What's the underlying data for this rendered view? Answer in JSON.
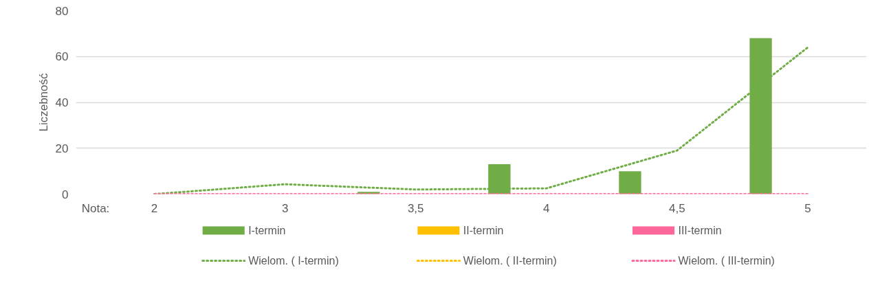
{
  "chart_data": {
    "type": "bar",
    "xlabel": "Nota:",
    "ylabel": "Liczebność",
    "categories": [
      "2",
      "3",
      "3,5",
      "4",
      "4,5",
      "5"
    ],
    "ylim": [
      0,
      80
    ],
    "yticks": [
      0,
      20,
      40,
      60,
      80
    ],
    "grid": "y",
    "legend": "bottom",
    "series": [
      {
        "name": "I-termin",
        "color": "#70ad47",
        "values": [
          0,
          0,
          1,
          13,
          10,
          68
        ]
      },
      {
        "name": "II-termin",
        "color": "#ffc000",
        "values": [
          0,
          0,
          0,
          0,
          0,
          0
        ]
      },
      {
        "name": "III-termin",
        "color": "#ff6699",
        "values": [
          0,
          0,
          0,
          0,
          0,
          0
        ]
      },
      {
        "name": "Wielom. ( I-termin)",
        "type": "line",
        "line_style": "dotted",
        "color": "#70ad47",
        "values": [
          0,
          4.3,
          2,
          2.5,
          19,
          64
        ]
      },
      {
        "name": "Wielom. ( II-termin)",
        "type": "line",
        "line_style": "dotted",
        "color": "#ffc000",
        "values": [
          null,
          null,
          null,
          null,
          null,
          null
        ]
      },
      {
        "name": "Wielom. ( III-termin)",
        "type": "line",
        "line_style": "dotted",
        "color": "#ff6699",
        "values": [
          0,
          0,
          0,
          0,
          0,
          0
        ]
      }
    ]
  }
}
